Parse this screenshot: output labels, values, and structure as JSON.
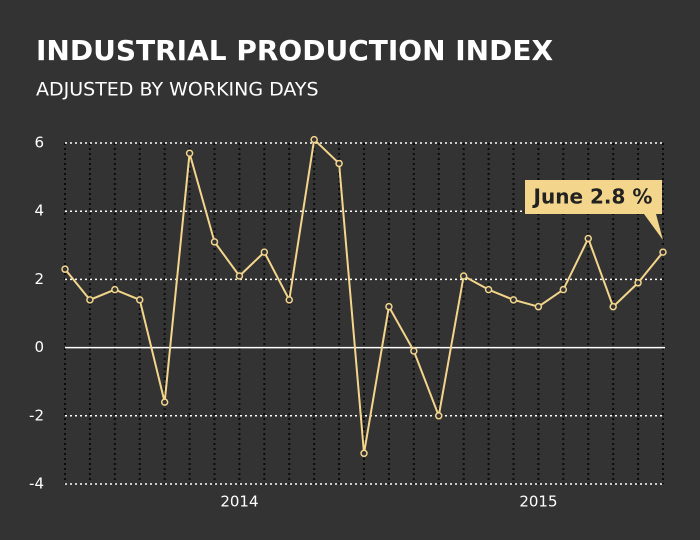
{
  "chart_data": {
    "type": "line",
    "title": "INDUSTRIAL PRODUCTION INDEX",
    "subtitle": "ADJUSTED BY WORKING DAYS",
    "annotation": "June 2.8 %",
    "categories": [
      null,
      null,
      null,
      null,
      null,
      null,
      null,
      "2014",
      null,
      null,
      null,
      null,
      null,
      null,
      null,
      null,
      null,
      null,
      null,
      "2015",
      null,
      null,
      null,
      null,
      null
    ],
    "series": [
      {
        "name": "Industrial production index",
        "color": "#f3d58c",
        "values": [
          2.3,
          1.4,
          1.7,
          1.4,
          -1.6,
          5.7,
          3.1,
          2.1,
          2.8,
          1.4,
          6.1,
          5.4,
          -3.1,
          1.2,
          -0.1,
          -2.0,
          2.1,
          1.7,
          1.4,
          1.2,
          1.7,
          3.2,
          1.2,
          1.9,
          2.8
        ]
      }
    ],
    "ylim": [
      -4,
      6
    ],
    "yticks": [
      -4,
      -2,
      0,
      2,
      4,
      6
    ],
    "grid": true
  }
}
